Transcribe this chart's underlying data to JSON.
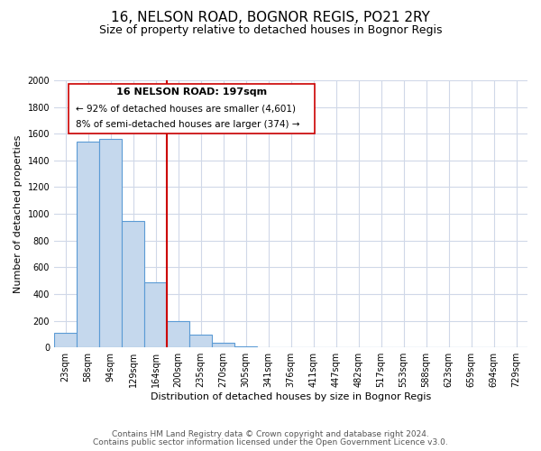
{
  "title": "16, NELSON ROAD, BOGNOR REGIS, PO21 2RY",
  "subtitle": "Size of property relative to detached houses in Bognor Regis",
  "xlabel": "Distribution of detached houses by size in Bognor Regis",
  "ylabel": "Number of detached properties",
  "bin_labels": [
    "23sqm",
    "58sqm",
    "94sqm",
    "129sqm",
    "164sqm",
    "200sqm",
    "235sqm",
    "270sqm",
    "305sqm",
    "341sqm",
    "376sqm",
    "411sqm",
    "447sqm",
    "482sqm",
    "517sqm",
    "553sqm",
    "588sqm",
    "623sqm",
    "659sqm",
    "694sqm",
    "729sqm"
  ],
  "bar_heights": [
    110,
    1540,
    1560,
    950,
    490,
    200,
    95,
    35,
    5,
    0,
    0,
    0,
    0,
    0,
    0,
    0,
    0,
    0,
    0,
    0,
    0
  ],
  "bar_color": "#c5d8ed",
  "bar_edge_color": "#5b9bd5",
  "reference_line_color": "#cc0000",
  "ylim": [
    0,
    2000
  ],
  "yticks": [
    0,
    200,
    400,
    600,
    800,
    1000,
    1200,
    1400,
    1600,
    1800,
    2000
  ],
  "annotation_line1": "16 NELSON ROAD: 197sqm",
  "annotation_line2": "← 92% of detached houses are smaller (4,601)",
  "annotation_line3": "8% of semi-detached houses are larger (374) →",
  "footer_line1": "Contains HM Land Registry data © Crown copyright and database right 2024.",
  "footer_line2": "Contains public sector information licensed under the Open Government Licence v3.0.",
  "background_color": "#ffffff",
  "grid_color": "#d0d8e8",
  "title_fontsize": 11,
  "subtitle_fontsize": 9,
  "axis_label_fontsize": 8,
  "tick_fontsize": 7,
  "footer_fontsize": 6.5,
  "annotation_fontsize": 8
}
